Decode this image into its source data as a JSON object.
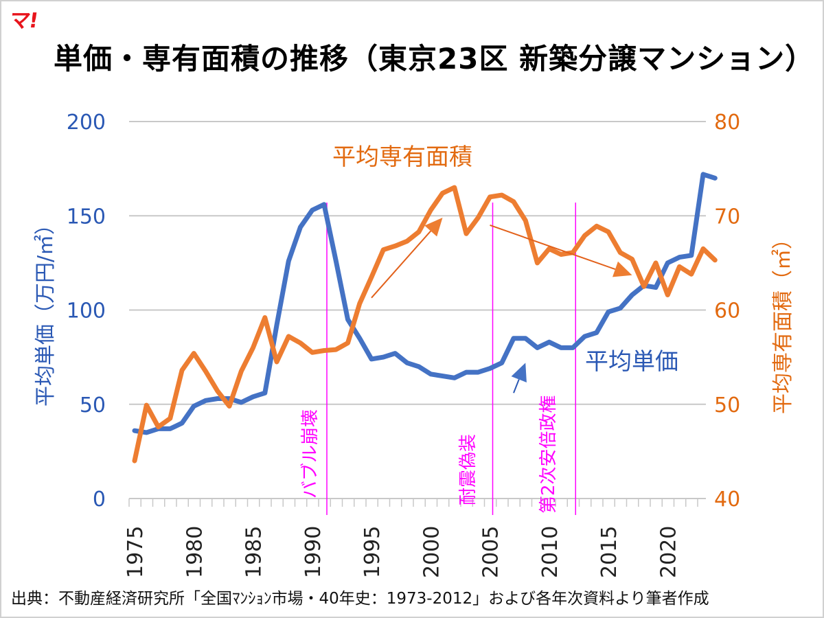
{
  "header": {
    "logo_text": "マ!",
    "title": "単価・専有面積の推移（東京23区 新築分譲マンション）"
  },
  "footer": {
    "source": "出典：不動産経済研究所「全国ﾏﾝｼｮﾝ市場・40年史：1973-2012」および各年次資料より筆者作成"
  },
  "colors": {
    "price": "#4472c4",
    "area": "#ed7d31",
    "event": "#ff00ff",
    "grid": "#c8c8c8",
    "arrow_area": "#e2601a",
    "arrow_price": "#2a58b4"
  },
  "chart_data": {
    "type": "line",
    "title": "単価・専有面積の推移（東京23区 新築分譲マンション）",
    "x": [
      1975,
      1976,
      1977,
      1978,
      1979,
      1980,
      1981,
      1982,
      1983,
      1984,
      1985,
      1986,
      1987,
      1988,
      1989,
      1990,
      1991,
      1992,
      1993,
      1994,
      1995,
      1996,
      1997,
      1998,
      1999,
      2000,
      2001,
      2002,
      2003,
      2004,
      2005,
      2006,
      2007,
      2008,
      2009,
      2010,
      2011,
      2012,
      2013,
      2014,
      2015,
      2016,
      2017,
      2018,
      2019,
      2020,
      2021,
      2022,
      2023,
      2024
    ],
    "xlabel": "",
    "x_tick_labels": [
      "1975",
      "1980",
      "1985",
      "1990",
      "1995",
      "2000",
      "2005",
      "2010",
      "2015",
      "2020"
    ],
    "xlim": [
      1975,
      2024
    ],
    "grid": true,
    "series": [
      {
        "name": "平均単価",
        "axis": "left",
        "values": [
          36,
          35,
          37,
          37,
          40,
          49,
          52,
          53,
          53,
          51,
          54,
          56,
          92,
          126,
          144,
          153,
          156,
          126,
          95,
          85,
          74,
          75,
          77,
          72,
          70,
          66,
          65,
          64,
          67,
          67,
          69,
          72,
          85,
          85,
          80,
          83,
          80,
          80,
          86,
          88,
          99,
          101,
          108,
          113,
          112,
          125,
          128,
          129,
          172,
          170
        ]
      },
      {
        "name": "平均専有面積",
        "axis": "right",
        "values": [
          44.0,
          49.9,
          47.6,
          48.5,
          53.6,
          55.4,
          53.5,
          51.4,
          49.8,
          53.5,
          56.0,
          59.2,
          54.5,
          57.2,
          56.5,
          55.5,
          55.7,
          55.8,
          56.5,
          60.7,
          63.5,
          66.4,
          66.8,
          67.3,
          68.3,
          70.6,
          72.4,
          73.0,
          68.1,
          69.8,
          72.0,
          72.2,
          71.5,
          69.5,
          65.0,
          66.5,
          65.9,
          66.1,
          67.9,
          68.9,
          68.3,
          66.1,
          65.4,
          62.5,
          65.0,
          61.6,
          64.6,
          63.8,
          66.5,
          65.3
        ]
      }
    ],
    "y_left": {
      "label": "平均単価（万円/㎡）",
      "ylim": [
        0,
        200
      ],
      "ticks": [
        "0",
        "50",
        "100",
        "150",
        "200"
      ]
    },
    "y_right": {
      "label": "平均専有面積（㎡）",
      "ylim": [
        40,
        80
      ],
      "ticks": [
        "40",
        "50",
        "60",
        "70",
        "80"
      ]
    },
    "series_labels": {
      "area": "平均専有面積",
      "price": "平均単価"
    },
    "events": [
      {
        "year": 1991,
        "label": "バブル崩壊"
      },
      {
        "year": 2005,
        "label": "耐震偽装"
      },
      {
        "year": 2012,
        "label": "第2次安倍政権"
      }
    ],
    "annotations": [
      {
        "type": "arrow",
        "series": "area",
        "from": [
          1995,
          61.3
        ],
        "to": [
          2001,
          69.8
        ],
        "meaning": "upward trend"
      },
      {
        "type": "arrow",
        "series": "area",
        "from": [
          2005,
          69.0
        ],
        "to": [
          2017,
          63.7
        ],
        "meaning": "downward trend"
      },
      {
        "type": "arrow",
        "series": "price",
        "from": [
          2007,
          56
        ],
        "to": [
          2008,
          72
        ],
        "meaning": "price rise"
      }
    ]
  }
}
